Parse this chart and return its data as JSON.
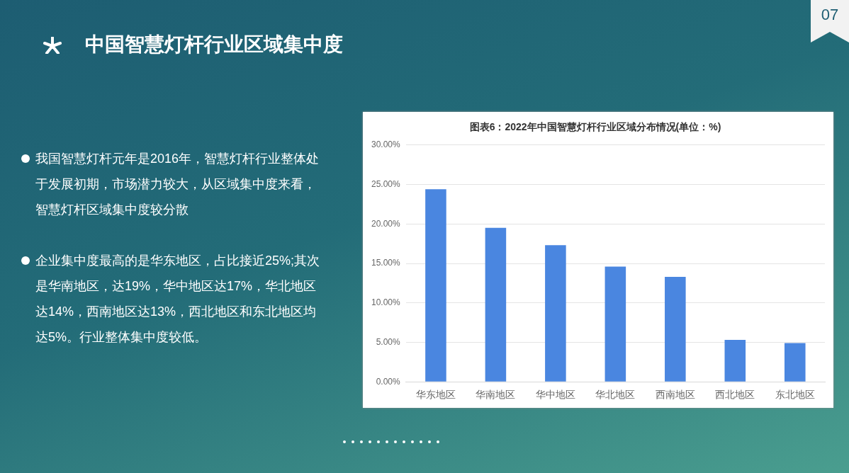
{
  "chart_data": {
    "type": "bar",
    "title": "图表6：2022年中国智慧灯杆行业区域分布情况(单位：%)",
    "categories": [
      "华东地区",
      "华南地区",
      "华中地区",
      "华北地区",
      "西南地区",
      "西北地区",
      "东北地区"
    ],
    "values": [
      24.4,
      19.5,
      17.3,
      14.6,
      13.3,
      5.3,
      4.9
    ],
    "color": "#4a86e0",
    "ylim": [
      0,
      30
    ],
    "yticks": [
      {
        "value": 0,
        "label": "0.00%"
      },
      {
        "value": 5,
        "label": "5.00%"
      },
      {
        "value": 10,
        "label": "10.00%"
      },
      {
        "value": 15,
        "label": "15.00%"
      },
      {
        "value": 20,
        "label": "20.00%"
      },
      {
        "value": 25,
        "label": "25.00%"
      },
      {
        "value": 30,
        "label": "30.00%"
      }
    ],
    "grid": "y",
    "legend": false,
    "annotations": [
      "中国智慧灯杆行业区域集中度",
      "07",
      "我国智慧灯杆元年是2016年，智慧灯杆行业整体处于发展初期，市场潜力较大，从区域集中度来看，智慧灯杆区域集中度较分散",
      "企业集中度最高的是华东地区，占比接近25%;其次是华南地区，达19%，华中地区达17%，华北地区达14%，西南地区达13%，西北地区和东北地区均达5%。行业整体集中度较低。"
    ]
  }
}
